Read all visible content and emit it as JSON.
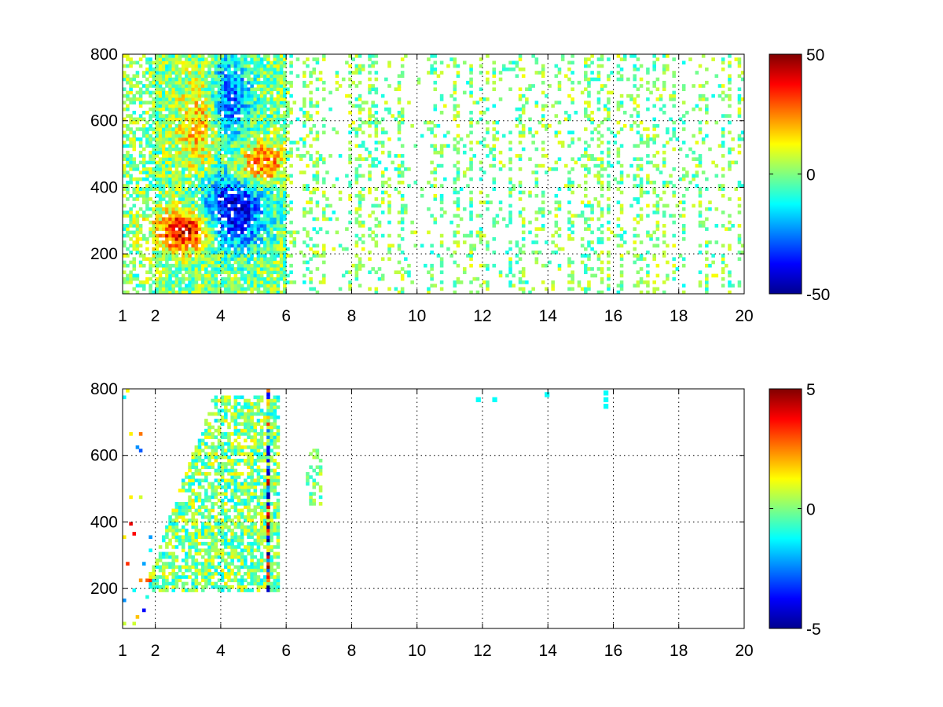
{
  "chart_data": [
    {
      "type": "heatmap",
      "panel": "top",
      "colormap": "jet",
      "grid": true,
      "xlim": [
        1,
        20
      ],
      "ylim": [
        80,
        800
      ],
      "x_ticks": [
        1,
        2,
        4,
        6,
        8,
        10,
        12,
        14,
        16,
        18,
        20
      ],
      "y_ticks": [
        200,
        400,
        600,
        800
      ],
      "colorbar": {
        "min": -50,
        "max": 50,
        "ticks": [
          50,
          0,
          -50
        ],
        "position": "right"
      },
      "features": [
        {
          "name": "warm-band",
          "x": [
            2.2,
            3.6
          ],
          "y": [
            220,
            320
          ],
          "value": 45
        },
        {
          "name": "cold-band",
          "x": [
            3.6,
            5.2
          ],
          "y": [
            240,
            420
          ],
          "value": -42
        },
        {
          "name": "upper-warm",
          "x": [
            2.8,
            3.8
          ],
          "y": [
            480,
            700
          ],
          "value": 20
        },
        {
          "name": "upper-cold",
          "x": [
            3.8,
            4.8
          ],
          "y": [
            560,
            780
          ],
          "value": -28
        },
        {
          "name": "right-warm",
          "x": [
            4.6,
            5.8
          ],
          "y": [
            420,
            520
          ],
          "value": 32
        }
      ],
      "sparse_region": {
        "x": [
          6,
          20
        ],
        "value_range": [
          -12,
          12
        ]
      }
    },
    {
      "type": "heatmap",
      "panel": "bottom",
      "colormap": "jet",
      "grid": true,
      "xlim": [
        1,
        20
      ],
      "ylim": [
        80,
        800
      ],
      "x_ticks": [
        1,
        2,
        4,
        6,
        8,
        10,
        12,
        14,
        16,
        18,
        20
      ],
      "y_ticks": [
        200,
        400,
        600,
        800
      ],
      "colorbar": {
        "min": -5,
        "max": 5,
        "ticks": [
          5,
          0,
          -5
        ],
        "position": "right"
      },
      "features": [
        {
          "name": "main-blob",
          "x": [
            1.8,
            5.8
          ],
          "y": [
            190,
            780
          ],
          "value_range": [
            -1.5,
            1.5
          ]
        },
        {
          "name": "vertical-stripe",
          "x": [
            5.35,
            5.45
          ],
          "y": [
            190,
            800
          ],
          "value_range": [
            -5,
            5
          ]
        }
      ],
      "sparse_region": {
        "x": [
          6,
          16
        ],
        "value_range": [
          -1,
          1
        ]
      }
    }
  ]
}
